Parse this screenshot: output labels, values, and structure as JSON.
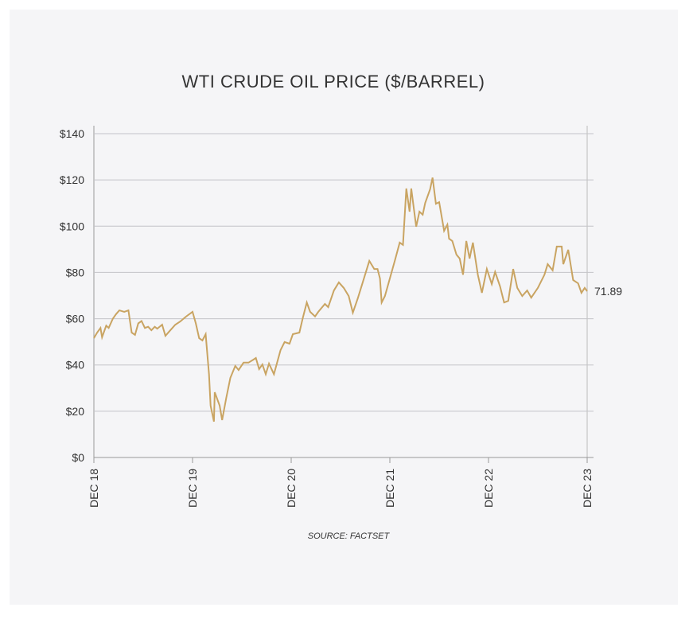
{
  "chart_data": {
    "type": "line",
    "title": "WTI CRUDE OIL PRICE ($/BARREL)",
    "source": "SOURCE: FACTSET",
    "x": [
      0,
      0.4,
      0.8,
      1,
      1.5,
      1.8,
      2.3,
      2.7,
      3.1,
      3.7,
      4.2,
      4.6,
      5,
      5.4,
      5.8,
      6.2,
      6.6,
      7,
      7.4,
      7.7,
      8.3,
      8.7,
      9.3,
      9.9,
      10.5,
      11.2,
      12,
      12.4,
      12.8,
      13.2,
      13.6,
      14,
      14.2,
      14.6,
      14.7,
      15.3,
      15.6,
      16.1,
      16.6,
      17.2,
      17.6,
      18.2,
      18.8,
      19.4,
      19.7,
      20.1,
      20.5,
      20.9,
      21.3,
      21.9,
      22.7,
      23.2,
      23.8,
      24.2,
      25,
      25.4,
      25.9,
      26.3,
      26.9,
      27.3,
      28.1,
      28.5,
      29.2,
      29.8,
      30.4,
      31,
      31.5,
      32.1,
      32.7,
      33.5,
      34.1,
      34.5,
      34.8,
      35,
      35.4,
      36,
      36.6,
      37.2,
      37.6,
      38,
      38.4,
      38.6,
      39.2,
      39.6,
      40,
      40.3,
      40.9,
      41.2,
      41.6,
      42,
      42.6,
      43,
      43.2,
      43.6,
      44.1,
      44.5,
      44.9,
      45.3,
      45.7,
      46.1,
      46.7,
      47.2,
      47.8,
      48.4,
      48.8,
      49.4,
      49.9,
      50.4,
      51,
      51.5,
      52.1,
      52.7,
      53.2,
      54,
      54.8,
      55.2,
      55.8,
      56.3,
      56.9,
      57.1,
      57.7,
      58.3,
      58.9,
      59.3,
      59.7,
      60
    ],
    "series": [
      {
        "name": "WTI",
        "color": "#c9a462",
        "values": [
          51.6,
          54,
          56,
          52,
          57,
          56,
          60,
          62,
          63.6,
          63,
          63.6,
          54,
          53,
          58,
          59,
          56,
          56.5,
          55,
          56.5,
          55.7,
          57.4,
          52.6,
          55,
          57.4,
          58.8,
          60.9,
          63,
          58,
          51.6,
          50.6,
          53.3,
          36,
          22.4,
          15.5,
          28.2,
          22.4,
          16.2,
          25.8,
          34.4,
          39.6,
          37.8,
          41,
          41,
          42.3,
          43,
          38.2,
          40.2,
          36,
          40.6,
          36,
          46.4,
          49.9,
          49.2,
          53.3,
          54,
          60.2,
          67,
          63,
          61,
          63,
          66.4,
          65,
          72.2,
          75.7,
          73.3,
          69.8,
          62.6,
          68.8,
          75.7,
          85,
          81.5,
          81.5,
          77.4,
          67,
          69.8,
          77.4,
          85,
          92.9,
          91.9,
          116.3,
          106.3,
          116.3,
          99.8,
          106.3,
          105,
          110,
          116,
          121,
          109.7,
          110.4,
          98,
          100.7,
          94.6,
          93.6,
          87.7,
          86,
          79,
          93.6,
          86,
          92.9,
          79,
          71.2,
          81.5,
          75,
          80.2,
          74,
          67,
          67.7,
          81.5,
          73.3,
          69.8,
          72.2,
          69.1,
          73.3,
          79,
          83.6,
          80.9,
          91.2,
          91.2,
          83.6,
          89.8,
          76.7,
          75.3,
          71.2,
          73.3,
          71.89
        ]
      }
    ],
    "xlim": [
      0,
      60
    ],
    "xticks": [
      {
        "value": 0,
        "label": "DEC 18"
      },
      {
        "value": 12,
        "label": "DEC 19"
      },
      {
        "value": 24,
        "label": "DEC 20"
      },
      {
        "value": 36,
        "label": "DEC 21"
      },
      {
        "value": 48,
        "label": "DEC 22"
      },
      {
        "value": 60,
        "label": "DEC 23"
      }
    ],
    "ylim": [
      0,
      140
    ],
    "yticks": [
      {
        "value": 0,
        "label": "$0"
      },
      {
        "value": 20,
        "label": "$20"
      },
      {
        "value": 40,
        "label": "$40"
      },
      {
        "value": 60,
        "label": "$60"
      },
      {
        "value": 80,
        "label": "$80"
      },
      {
        "value": 100,
        "label": "$100"
      },
      {
        "value": 120,
        "label": "$120"
      },
      {
        "value": 140,
        "label": "$140"
      }
    ],
    "grid": true
  }
}
